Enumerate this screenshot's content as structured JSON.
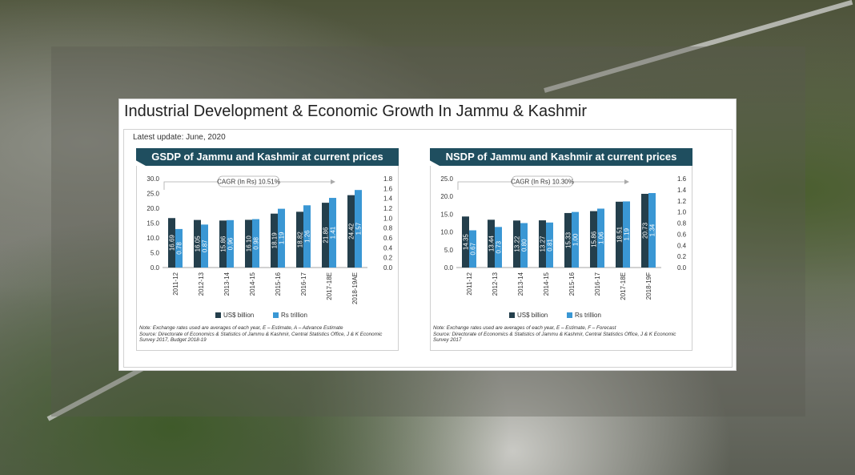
{
  "header": {
    "title": "Industrial Development & Economic Growth In Jammu & Kashmir",
    "update": "Latest update: June, 2020"
  },
  "colors": {
    "usd_bar": "#243f4c",
    "rs_bar": "#3a97d4",
    "header_bg": "#1f4e5f"
  },
  "chart_data": [
    {
      "type": "bar",
      "title": "GSDP of Jammu and Kashmir at current prices",
      "cagr": "CAGR (In Rs) 10.51%",
      "categories": [
        "2011-12",
        "2012-13",
        "2013-14",
        "2014-15",
        "2015-16",
        "2016-17",
        "2017-18E",
        "2018-19AE"
      ],
      "series": [
        {
          "name": "US$ billion",
          "axis": "left",
          "values": [
            16.69,
            16.05,
            15.86,
            16.1,
            18.19,
            18.82,
            21.86,
            24.42
          ],
          "labels": [
            "16.69",
            "16.05",
            "15.86",
            "16.10",
            "18.19",
            "18.82",
            "21.86",
            "24.42"
          ]
        },
        {
          "name": "Rs trillion",
          "axis": "right",
          "values": [
            0.78,
            0.87,
            0.96,
            0.98,
            1.19,
            1.26,
            1.41,
            1.57
          ],
          "labels": [
            "0.78",
            "0.87",
            "0.96",
            "0.98",
            "1.19",
            "1.26",
            "1.41",
            "1.57"
          ]
        }
      ],
      "ylim_left": [
        0,
        30
      ],
      "yticks_left": [
        "0.0",
        "5.0",
        "10.0",
        "15.0",
        "20.0",
        "25.0",
        "30.0"
      ],
      "ylim_right": [
        0,
        1.8
      ],
      "yticks_right": [
        "0.0",
        "0.2",
        "0.4",
        "0.6",
        "0.8",
        "1.0",
        "1.2",
        "1.4",
        "1.6",
        "1.8"
      ],
      "note": "Note: Exchange rates used are averages of each year, E – Estimate, A – Advance Estimate",
      "source": "Source: Directorate of Economics & Statistics of Jammu & Kashmir, Central Statistics Office, J & K Economic Survey 2017, Budget 2018-19"
    },
    {
      "type": "bar",
      "title": "NSDP of Jammu and Kashmir at current prices",
      "cagr": "CAGR (In Rs) 10.30%",
      "categories": [
        "2011-12",
        "2012-13",
        "2013-14",
        "2014-15",
        "2015-16",
        "2016-17",
        "2017-18E",
        "2018-19F"
      ],
      "series": [
        {
          "name": "US$ billion",
          "axis": "left",
          "values": [
            14.35,
            13.44,
            13.22,
            13.27,
            15.33,
            15.86,
            18.51,
            20.73
          ],
          "labels": [
            "14.35",
            "13.44",
            "13.22",
            "13.27",
            "15.33",
            "15.86",
            "18.51",
            "20.73"
          ]
        },
        {
          "name": "Rs trillion",
          "axis": "right",
          "values": [
            0.67,
            0.73,
            0.8,
            0.81,
            1.0,
            1.06,
            1.19,
            1.34
          ],
          "labels": [
            "0.67",
            "0.73",
            "0.80",
            "0.81",
            "1.00",
            "1.06",
            "1.19",
            "1.34"
          ]
        }
      ],
      "ylim_left": [
        0,
        25
      ],
      "yticks_left": [
        "0.0",
        "5.0",
        "10.0",
        "15.0",
        "20.0",
        "25.0"
      ],
      "ylim_right": [
        0,
        1.6
      ],
      "yticks_right": [
        "0.0",
        "0.2",
        "0.4",
        "0.6",
        "0.8",
        "1.0",
        "1.2",
        "1.4",
        "1.6"
      ],
      "note": "Note: Exchange rates used are averages of each year, E – Estimate, F – Forecast",
      "source": "Source: Directorate of Economics & Statistics of Jammu & Kashmir, Central Statistics Office, J & K Economic Survey 2017"
    }
  ]
}
